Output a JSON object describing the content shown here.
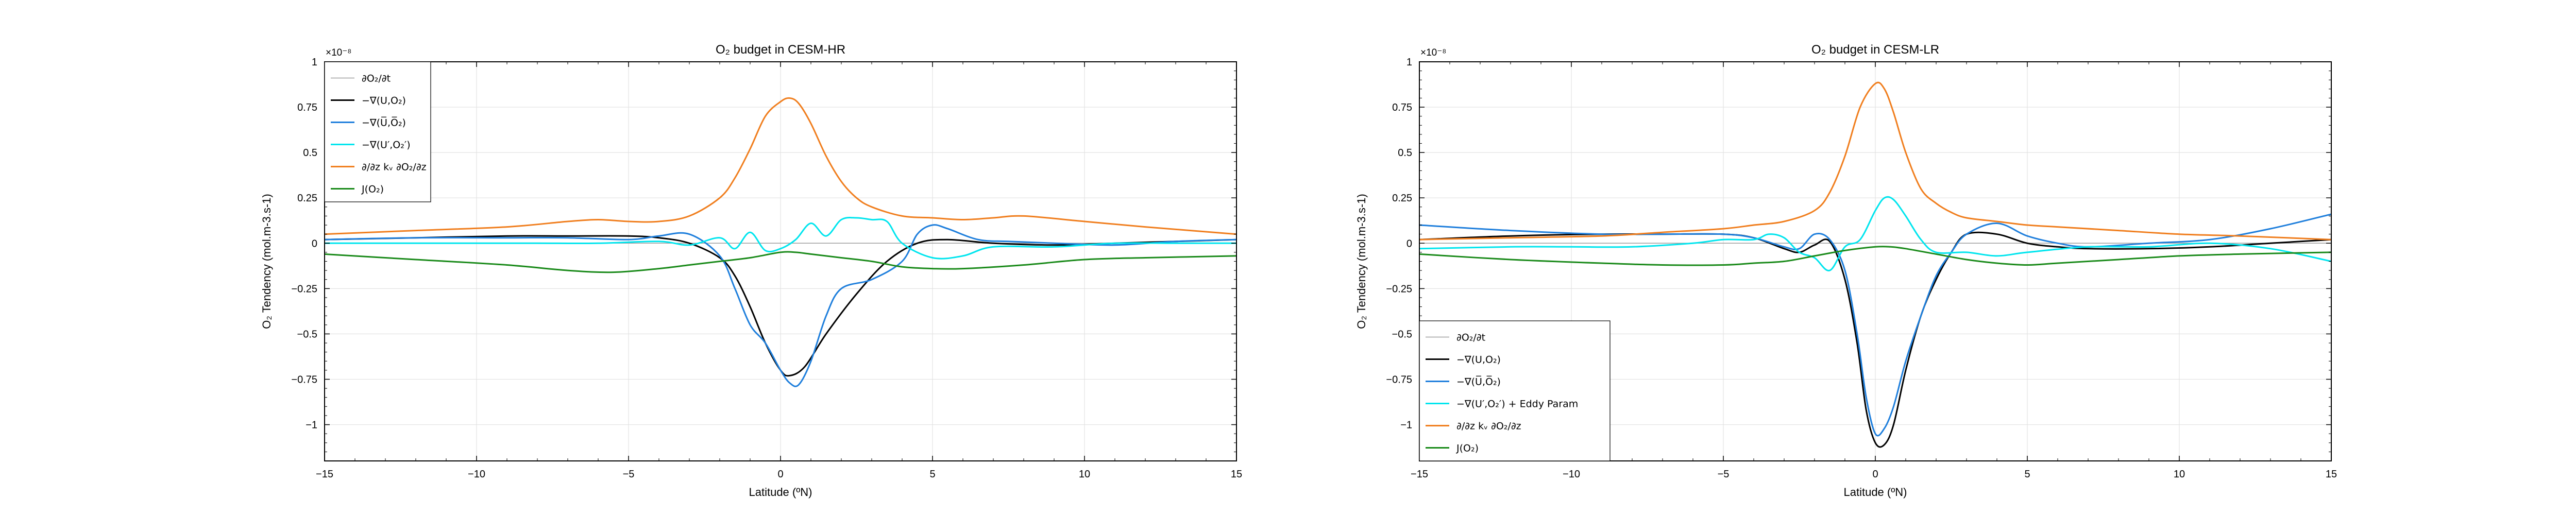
{
  "colors": {
    "dOdt": "#9e9e9e",
    "total": "#000000",
    "mean": "#1f7fdc",
    "eddy": "#00e5ee",
    "diff": "#f07e1e",
    "J": "#1a8a1a",
    "grid": "#e2e2e2"
  },
  "chart_data": [
    {
      "type": "line",
      "title": "O₂ budget in CESM-HR",
      "xlabel": "Latitude (ºN)",
      "ylabel": "O₂ Tendency (mol.m-3.s-1)",
      "y_multiplier": "×10⁻⁸",
      "xlim": [
        -15,
        15
      ],
      "ylim": [
        -1.2,
        1
      ],
      "xticks": [
        -15,
        -10,
        -5,
        0,
        5,
        10,
        15
      ],
      "yticks": [
        -1,
        -0.75,
        -0.5,
        -0.25,
        0,
        0.25,
        0.5,
        0.75,
        1
      ],
      "grid": true,
      "legend_position": "upper-left",
      "series": [
        {
          "name": "∂O₂/∂t",
          "color_key": "dOdt",
          "x": [
            -15,
            15
          ],
          "y": [
            0.0,
            0.0
          ]
        },
        {
          "name": "−∇(U,O₂)",
          "color_key": "total",
          "x": [
            -15,
            -12,
            -9,
            -7,
            -5,
            -4,
            -3,
            -2,
            -1.5,
            -1,
            -0.5,
            0,
            0.3,
            0.8,
            1.5,
            2.5,
            3.5,
            4.5,
            5.5,
            7,
            9,
            11,
            13,
            15
          ],
          "y": [
            0.02,
            0.03,
            0.04,
            0.04,
            0.04,
            0.03,
            0.0,
            -0.08,
            -0.18,
            -0.35,
            -0.55,
            -0.7,
            -0.73,
            -0.68,
            -0.5,
            -0.28,
            -0.1,
            0.0,
            0.02,
            0.0,
            -0.01,
            0.0,
            0.01,
            0.02
          ]
        },
        {
          "name": "−∇(U̅,O̅₂)",
          "color_key": "mean",
          "x": [
            -15,
            -12,
            -9,
            -7,
            -5,
            -4,
            -3,
            -2,
            -1.5,
            -1,
            -0.5,
            0,
            0.3,
            0.6,
            1,
            1.5,
            2,
            3,
            4,
            4.5,
            5,
            5.5,
            6.5,
            7.5,
            9,
            11,
            13,
            15
          ],
          "y": [
            0.02,
            0.03,
            0.03,
            0.03,
            0.02,
            0.04,
            0.05,
            -0.07,
            -0.25,
            -0.45,
            -0.55,
            -0.7,
            -0.77,
            -0.78,
            -0.65,
            -0.4,
            -0.25,
            -0.2,
            -0.1,
            0.05,
            0.1,
            0.08,
            0.02,
            0.01,
            0.0,
            -0.01,
            0.01,
            0.02
          ]
        },
        {
          "name": "−∇(U′,O₂′)",
          "color_key": "eddy",
          "x": [
            -15,
            -12,
            -10,
            -8,
            -6,
            -4,
            -3,
            -2,
            -1.5,
            -1,
            -0.5,
            0,
            0.5,
            1,
            1.5,
            2,
            2.5,
            3,
            3.5,
            4,
            5,
            6,
            7,
            9,
            11,
            13,
            15
          ],
          "y": [
            0.0,
            0.0,
            0.0,
            0.0,
            0.0,
            0.01,
            -0.01,
            0.03,
            -0.03,
            0.06,
            -0.04,
            -0.03,
            0.02,
            0.11,
            0.04,
            0.13,
            0.14,
            0.13,
            0.12,
            0.0,
            -0.08,
            -0.07,
            -0.02,
            -0.02,
            0.0,
            0.0,
            0.0
          ]
        },
        {
          "name": "∂/∂z kᵥ ∂O₂/∂z",
          "color_key": "diff",
          "x": [
            -15,
            -12,
            -9,
            -7,
            -6,
            -5,
            -4,
            -3,
            -2,
            -1.5,
            -1,
            -0.5,
            0,
            0.3,
            0.6,
            1,
            1.5,
            2,
            2.5,
            3,
            4,
            5,
            6,
            7,
            8,
            10,
            12,
            15
          ],
          "y": [
            0.05,
            0.07,
            0.09,
            0.12,
            0.13,
            0.12,
            0.12,
            0.15,
            0.25,
            0.36,
            0.52,
            0.7,
            0.78,
            0.8,
            0.77,
            0.66,
            0.48,
            0.34,
            0.25,
            0.2,
            0.15,
            0.14,
            0.13,
            0.14,
            0.15,
            0.12,
            0.09,
            0.05
          ]
        },
        {
          "name": "J(O₂)",
          "color_key": "J",
          "x": [
            -15,
            -12,
            -9,
            -7,
            -5.5,
            -4,
            -3,
            -2,
            -1,
            0,
            0.5,
            1,
            2,
            3,
            4,
            5,
            6,
            8,
            10,
            12,
            15
          ],
          "y": [
            -0.06,
            -0.09,
            -0.12,
            -0.15,
            -0.16,
            -0.14,
            -0.12,
            -0.1,
            -0.08,
            -0.05,
            -0.05,
            -0.06,
            -0.08,
            -0.1,
            -0.13,
            -0.14,
            -0.14,
            -0.12,
            -0.09,
            -0.08,
            -0.07
          ]
        }
      ]
    },
    {
      "type": "line",
      "title": "O₂ budget in CESM-LR",
      "xlabel": "Latitude (ºN)",
      "ylabel": "O₂ Tendency (mol.m-3.s-1)",
      "y_multiplier": "×10⁻⁸",
      "xlim": [
        -15,
        15
      ],
      "ylim": [
        -1.2,
        1
      ],
      "xticks": [
        -15,
        -10,
        -5,
        0,
        5,
        10,
        15
      ],
      "yticks": [
        -1,
        -0.75,
        -0.5,
        -0.25,
        0,
        0.25,
        0.5,
        0.75,
        1
      ],
      "grid": true,
      "legend_position": "lower-left",
      "series": [
        {
          "name": "∂O₂/∂t",
          "color_key": "dOdt",
          "x": [
            -15,
            15
          ],
          "y": [
            0.0,
            0.0
          ]
        },
        {
          "name": "−∇(U,O₂)",
          "color_key": "total",
          "x": [
            -15,
            -12,
            -9,
            -7,
            -5,
            -4,
            -3,
            -2.5,
            -2,
            -1.5,
            -1,
            -0.6,
            -0.3,
            0,
            0.3,
            0.6,
            1,
            1.5,
            2,
            2.5,
            3,
            4,
            5,
            6,
            7,
            9,
            11,
            13,
            15
          ],
          "y": [
            0.02,
            0.04,
            0.05,
            0.05,
            0.05,
            0.03,
            -0.03,
            -0.05,
            -0.01,
            0.01,
            -0.2,
            -0.55,
            -0.92,
            -1.1,
            -1.11,
            -1.0,
            -0.7,
            -0.4,
            -0.2,
            -0.05,
            0.05,
            0.05,
            0.0,
            -0.02,
            -0.03,
            -0.03,
            -0.02,
            0.0,
            0.02
          ]
        },
        {
          "name": "−∇(U̅,O̅₂)",
          "color_key": "mean",
          "x": [
            -15,
            -12,
            -9,
            -7,
            -5,
            -4,
            -3,
            -2.5,
            -2,
            -1.5,
            -1,
            -0.6,
            -0.3,
            0,
            0.3,
            0.6,
            1,
            1.5,
            2,
            2.5,
            3,
            4,
            5,
            6,
            7,
            9,
            11,
            13,
            15
          ],
          "y": [
            0.1,
            0.07,
            0.05,
            0.05,
            0.05,
            0.03,
            -0.02,
            -0.03,
            0.05,
            0.02,
            -0.15,
            -0.5,
            -0.85,
            -1.05,
            -1.02,
            -0.9,
            -0.65,
            -0.4,
            -0.18,
            -0.05,
            0.05,
            0.11,
            0.04,
            0.0,
            -0.02,
            0.0,
            0.02,
            0.08,
            0.16
          ]
        },
        {
          "name": "−∇(U′,O₂′) + Eddy Param",
          "color_key": "eddy",
          "x": [
            -15,
            -12,
            -10,
            -8,
            -6,
            -5,
            -4,
            -3.5,
            -3,
            -2.5,
            -2,
            -1.5,
            -1,
            -0.5,
            0,
            0.3,
            0.6,
            1,
            1.5,
            2,
            3,
            4,
            5,
            7,
            9,
            11,
            13,
            15
          ],
          "y": [
            -0.03,
            -0.02,
            -0.02,
            -0.02,
            0.0,
            0.02,
            0.02,
            0.05,
            0.03,
            -0.05,
            -0.08,
            -0.15,
            -0.02,
            0.02,
            0.18,
            0.25,
            0.24,
            0.15,
            0.02,
            -0.05,
            -0.05,
            -0.07,
            -0.05,
            -0.02,
            -0.02,
            0.0,
            -0.03,
            -0.1
          ]
        },
        {
          "name": "∂/∂z kᵥ ∂O₂/∂z",
          "color_key": "diff",
          "x": [
            -15,
            -12,
            -9,
            -7,
            -5,
            -4,
            -3,
            -2,
            -1.5,
            -1,
            -0.5,
            0,
            0.3,
            0.6,
            1,
            1.5,
            2,
            2.5,
            3,
            4,
            5,
            6,
            8,
            10,
            12,
            15
          ],
          "y": [
            0.02,
            0.03,
            0.04,
            0.06,
            0.08,
            0.1,
            0.12,
            0.18,
            0.28,
            0.48,
            0.75,
            0.88,
            0.85,
            0.72,
            0.5,
            0.3,
            0.22,
            0.17,
            0.14,
            0.12,
            0.1,
            0.09,
            0.07,
            0.05,
            0.04,
            0.02
          ]
        },
        {
          "name": "J(O₂)",
          "color_key": "J",
          "x": [
            -15,
            -12,
            -9,
            -7,
            -5,
            -4,
            -3,
            -2,
            -1,
            0,
            0.5,
            1,
            2,
            3,
            4,
            5,
            6,
            8,
            10,
            12,
            15
          ],
          "y": [
            -0.06,
            -0.09,
            -0.11,
            -0.12,
            -0.12,
            -0.11,
            -0.1,
            -0.07,
            -0.04,
            -0.02,
            -0.02,
            -0.03,
            -0.06,
            -0.09,
            -0.11,
            -0.12,
            -0.11,
            -0.09,
            -0.07,
            -0.06,
            -0.05
          ]
        }
      ]
    }
  ]
}
